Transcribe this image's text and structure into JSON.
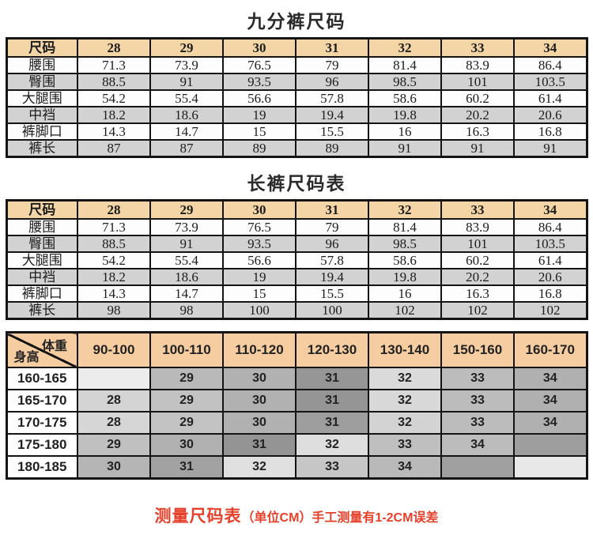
{
  "size_tables": [
    {
      "title": "九分裤尺码",
      "corner_label": "尺码",
      "sizes": [
        "28",
        "29",
        "30",
        "31",
        "32",
        "33",
        "34"
      ],
      "rows": [
        {
          "label": "腰围",
          "shade": "white",
          "values": [
            "71.3",
            "73.9",
            "76.5",
            "79",
            "81.4",
            "83.9",
            "86.4"
          ]
        },
        {
          "label": "臀围",
          "shade": "gray",
          "values": [
            "88.5",
            "91",
            "93.5",
            "96",
            "98.5",
            "101",
            "103.5"
          ]
        },
        {
          "label": "大腿围",
          "shade": "white",
          "values": [
            "54.2",
            "55.4",
            "56.6",
            "57.8",
            "58.6",
            "60.2",
            "61.4"
          ]
        },
        {
          "label": "中裆",
          "shade": "gray",
          "values": [
            "18.2",
            "18.6",
            "19",
            "19.4",
            "19.8",
            "20.2",
            "20.6"
          ]
        },
        {
          "label": "裤脚口",
          "shade": "white",
          "values": [
            "14.3",
            "14.7",
            "15",
            "15.5",
            "16",
            "16.3",
            "16.8"
          ]
        },
        {
          "label": "裤长",
          "shade": "gray",
          "values": [
            "87",
            "87",
            "89",
            "89",
            "91",
            "91",
            "91"
          ]
        }
      ]
    },
    {
      "title": "长裤尺码表",
      "corner_label": "尺码",
      "sizes": [
        "28",
        "29",
        "30",
        "31",
        "32",
        "33",
        "34"
      ],
      "rows": [
        {
          "label": "腰围",
          "shade": "white",
          "values": [
            "71.3",
            "73.9",
            "76.5",
            "79",
            "81.4",
            "83.9",
            "86.4"
          ]
        },
        {
          "label": "臀围",
          "shade": "gray",
          "values": [
            "88.5",
            "91",
            "93.5",
            "96",
            "98.5",
            "101",
            "103.5"
          ]
        },
        {
          "label": "大腿围",
          "shade": "white",
          "values": [
            "54.2",
            "55.4",
            "56.6",
            "57.8",
            "58.6",
            "60.2",
            "61.4"
          ]
        },
        {
          "label": "中裆",
          "shade": "gray",
          "values": [
            "18.2",
            "18.6",
            "19",
            "19.4",
            "19.8",
            "20.2",
            "20.6"
          ]
        },
        {
          "label": "裤脚口",
          "shade": "white",
          "values": [
            "14.3",
            "14.7",
            "15",
            "15.5",
            "16",
            "16.3",
            "16.8"
          ]
        },
        {
          "label": "裤长",
          "shade": "gray",
          "values": [
            "98",
            "98",
            "100",
            "100",
            "102",
            "102",
            "102"
          ]
        }
      ]
    }
  ],
  "fit_table": {
    "corner_top": "体重",
    "corner_bottom": "身高",
    "weight_cols": [
      "90-100",
      "100-110",
      "110-120",
      "120-130",
      "130-140",
      "150-160",
      "160-170"
    ],
    "rows": [
      {
        "label": "160-165",
        "cells": [
          {
            "value": "",
            "bg": "#ececec"
          },
          {
            "value": "29",
            "bg": "#b9b9b9"
          },
          {
            "value": "30",
            "bg": "#b1b1b1"
          },
          {
            "value": "31",
            "bg": "#969696"
          },
          {
            "value": "32",
            "bg": "#dadada"
          },
          {
            "value": "33",
            "bg": "#bcbcbc"
          },
          {
            "value": "34",
            "bg": "#b0b0b0"
          }
        ]
      },
      {
        "label": "165-170",
        "cells": [
          {
            "value": "28",
            "bg": "#d4d4d4"
          },
          {
            "value": "29",
            "bg": "#c2c2c2"
          },
          {
            "value": "30",
            "bg": "#b1b1b1"
          },
          {
            "value": "31",
            "bg": "#959595"
          },
          {
            "value": "32",
            "bg": "#d8d8d8"
          },
          {
            "value": "33",
            "bg": "#bcbcbc"
          },
          {
            "value": "34",
            "bg": "#b0b0b0"
          }
        ]
      },
      {
        "label": "170-175",
        "cells": [
          {
            "value": "28",
            "bg": "#d6d6d6"
          },
          {
            "value": "29",
            "bg": "#c3c3c3"
          },
          {
            "value": "30",
            "bg": "#b1b1b1"
          },
          {
            "value": "31",
            "bg": "#9e9e9e"
          },
          {
            "value": "32",
            "bg": "#d3d3d3"
          },
          {
            "value": "33",
            "bg": "#bcbcbc"
          },
          {
            "value": "34",
            "bg": "#b0b0b0"
          }
        ]
      },
      {
        "label": "175-180",
        "cells": [
          {
            "value": "29",
            "bg": "#c0c0c0"
          },
          {
            "value": "30",
            "bg": "#b1b1b1"
          },
          {
            "value": "31",
            "bg": "#949494"
          },
          {
            "value": "32",
            "bg": "#dedede"
          },
          {
            "value": "33",
            "bg": "#bfbfbf"
          },
          {
            "value": "34",
            "bg": "#bcbcbc"
          },
          {
            "value": "",
            "bg": "#9e9e9e"
          }
        ]
      },
      {
        "label": "180-185",
        "cells": [
          {
            "value": "30",
            "bg": "#b5b5b5"
          },
          {
            "value": "31",
            "bg": "#a2a2a2"
          },
          {
            "value": "32",
            "bg": "#e0e0e0"
          },
          {
            "value": "33",
            "bg": "#c6c6c6"
          },
          {
            "value": "34",
            "bg": "#b9b9b9"
          },
          {
            "value": "",
            "bg": "#a0a0a0"
          },
          {
            "value": "",
            "bg": "#e8e8e8"
          }
        ]
      }
    ]
  },
  "caption": {
    "main": "测量尺码表",
    "note": "（单位CM）手工测量有1-2CM误差"
  },
  "colors": {
    "size_header_peach": "#f4d6a6",
    "fit_header_peach": "#f6cda0",
    "row_gray": "#d2d2d2",
    "row_white": "#fdfdfd",
    "border_black": "#141414",
    "caption_red": "#e6402a"
  }
}
